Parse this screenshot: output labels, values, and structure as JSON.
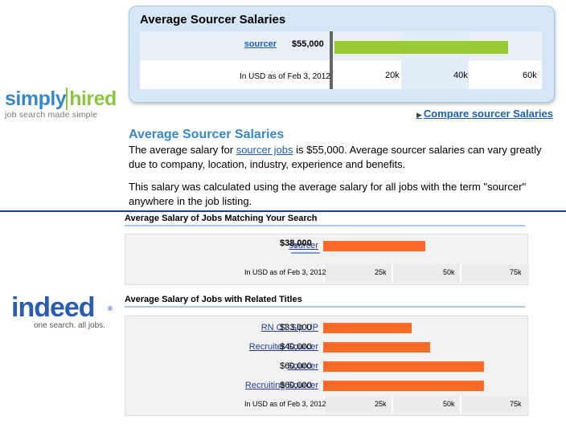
{
  "simplyhired": {
    "logo_simply": "simply",
    "logo_hired": "hired",
    "logo_tagline": "job search made simple",
    "card_title": "Average Sourcer Salaries",
    "row_label": "sourcer",
    "row_amount": "$55,000",
    "row_fraction": 0.917,
    "note": "In USD as of Feb 3, 2012",
    "ticks": [
      "20k",
      "40k",
      "60k"
    ],
    "bar_color": "#99cc33",
    "compare_link": "Compare sourcer Salaries",
    "section_heading": "Average Sourcer Salaries",
    "para1_before": "The average salary for ",
    "para1_link": "sourcer jobs",
    "para1_after": " is $55,000. Average sourcer salaries can vary greatly due to company, location, industry, experience and benefits.",
    "para2": "This salary was calculated using the average salary for all jobs with the term \"sourcer\" anywhere in the job listing."
  },
  "indeed": {
    "logo_word": "indeed",
    "logo_reg": "®",
    "logo_tagline": "one search. all jobs.",
    "bar_color": "#ff6a26",
    "section1": {
      "heading": "Average Salary of Jobs Matching Your Search",
      "rows": [
        {
          "label": "sourcer",
          "amount": "$38,000",
          "fraction": 0.507
        }
      ],
      "note": "In USD as of Feb 3, 2012",
      "ticks": [
        "25k",
        "50k",
        "75k"
      ]
    },
    "section2": {
      "heading": "Average Salary of Jobs with Related Titles",
      "rows": [
        {
          "label": "RN OT Slp UP",
          "amount": "$33,000",
          "fraction": 0.44
        },
        {
          "label": "Recruiter Sourcer",
          "amount": "$40,000",
          "fraction": 0.533
        },
        {
          "label": "Sourcer",
          "amount": "$60,000",
          "fraction": 0.8
        },
        {
          "label": "Recruiting Sourcer",
          "amount": "$60,000",
          "fraction": 0.8
        }
      ],
      "note": "In USD as of Feb 3, 2012",
      "ticks": [
        "25k",
        "50k",
        "75k"
      ]
    }
  }
}
